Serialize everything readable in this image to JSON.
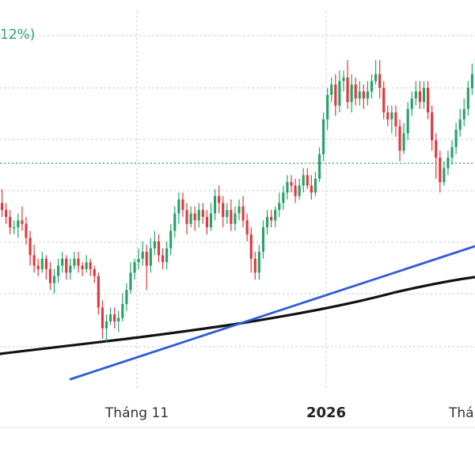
{
  "header": {
    "change_label": "12%)"
  },
  "colors": {
    "up": "#26a269",
    "down": "#e0383e",
    "trendline": "#2e5bd8",
    "moving_average": "#111111",
    "grid": "#d0d0d0",
    "reference_line": "#26a269"
  },
  "chart_data": {
    "type": "candlestick",
    "x_tick_labels": [
      {
        "label": "Tháng 11",
        "bold": false
      },
      {
        "label": "2026",
        "bold": true
      },
      {
        "label": "Tháng",
        "bold": false
      }
    ],
    "ylim": [
      0,
      100
    ],
    "grid": true,
    "reference_line": 60.4,
    "candles": [
      [
        49,
        47,
        53,
        45
      ],
      [
        47,
        45,
        49,
        43
      ],
      [
        45,
        42,
        47,
        40
      ],
      [
        42,
        42,
        44,
        40
      ],
      [
        42,
        44,
        46,
        39
      ],
      [
        44,
        43,
        48,
        41
      ],
      [
        43,
        39,
        45,
        37
      ],
      [
        39,
        34,
        41,
        31
      ],
      [
        34,
        31,
        37,
        29
      ],
      [
        31,
        30,
        33,
        28
      ],
      [
        30,
        33,
        35,
        29
      ],
      [
        33,
        30,
        34,
        27
      ],
      [
        30,
        26,
        32,
        24
      ],
      [
        26,
        28,
        30,
        23
      ],
      [
        28,
        31,
        33,
        26
      ],
      [
        31,
        33,
        35,
        29
      ],
      [
        33,
        29,
        34,
        27
      ],
      [
        29,
        31,
        33,
        27
      ],
      [
        31,
        33,
        35,
        30
      ],
      [
        33,
        31,
        35,
        29
      ],
      [
        31,
        30,
        32,
        28
      ],
      [
        30,
        32,
        34,
        29
      ],
      [
        32,
        30,
        33,
        28
      ],
      [
        30,
        28,
        31,
        26
      ],
      [
        28,
        19,
        29,
        17
      ],
      [
        19,
        13,
        21,
        10
      ],
      [
        13,
        15,
        17,
        9
      ],
      [
        15,
        17,
        19,
        14
      ],
      [
        17,
        15,
        19,
        13
      ],
      [
        15,
        16,
        18,
        12
      ],
      [
        16,
        20,
        23,
        15
      ],
      [
        20,
        24,
        26,
        18
      ],
      [
        24,
        29,
        32,
        23
      ],
      [
        29,
        32,
        33,
        27
      ],
      [
        32,
        33,
        36,
        30
      ],
      [
        33,
        35,
        38,
        31
      ],
      [
        35,
        31,
        37,
        24
      ],
      [
        31,
        36,
        39,
        29
      ],
      [
        36,
        38,
        41,
        34
      ],
      [
        38,
        34,
        40,
        32
      ],
      [
        34,
        32,
        36,
        30
      ],
      [
        32,
        36,
        38,
        30
      ],
      [
        36,
        41,
        43,
        34
      ],
      [
        41,
        46,
        48,
        39
      ],
      [
        46,
        50,
        52,
        43
      ],
      [
        50,
        47,
        52,
        45
      ],
      [
        47,
        43,
        49,
        40
      ],
      [
        43,
        46,
        48,
        42
      ],
      [
        46,
        44,
        48,
        41
      ],
      [
        44,
        47,
        49,
        42
      ],
      [
        47,
        45,
        49,
        43
      ],
      [
        45,
        42,
        47,
        40
      ],
      [
        42,
        46,
        49,
        41
      ],
      [
        46,
        51,
        53,
        44
      ],
      [
        51,
        49,
        54,
        46
      ],
      [
        49,
        45,
        51,
        42
      ],
      [
        45,
        47,
        49,
        43
      ],
      [
        47,
        43,
        50,
        41
      ],
      [
        43,
        46,
        48,
        41
      ],
      [
        46,
        48,
        50,
        44
      ],
      [
        48,
        44,
        51,
        42
      ],
      [
        44,
        40,
        46,
        38
      ],
      [
        40,
        33,
        42,
        29
      ],
      [
        33,
        29,
        35,
        27
      ],
      [
        29,
        35,
        37,
        27
      ],
      [
        35,
        42,
        44,
        33
      ],
      [
        42,
        45,
        47,
        40
      ],
      [
        45,
        44,
        47,
        42
      ],
      [
        44,
        47,
        48,
        42
      ],
      [
        47,
        49,
        52,
        45
      ],
      [
        49,
        52,
        54,
        47
      ],
      [
        52,
        55,
        57,
        50
      ],
      [
        55,
        54,
        57,
        52
      ],
      [
        54,
        51,
        56,
        49
      ],
      [
        51,
        54,
        56,
        50
      ],
      [
        54,
        57,
        59,
        52
      ],
      [
        57,
        54,
        59,
        53
      ],
      [
        54,
        52,
        57,
        50
      ],
      [
        52,
        56,
        58,
        51
      ],
      [
        56,
        63,
        65,
        55
      ],
      [
        63,
        73,
        75,
        61
      ],
      [
        73,
        80,
        82,
        70
      ],
      [
        80,
        83,
        85,
        78
      ],
      [
        83,
        77,
        86,
        74
      ],
      [
        77,
        84,
        87,
        75
      ],
      [
        84,
        85,
        87,
        81
      ],
      [
        85,
        78,
        90,
        76
      ],
      [
        78,
        83,
        86,
        75
      ],
      [
        83,
        79,
        85,
        77
      ],
      [
        79,
        81,
        84,
        77
      ],
      [
        81,
        79,
        83,
        76
      ],
      [
        79,
        81,
        84,
        77
      ],
      [
        81,
        84,
        86,
        79
      ],
      [
        84,
        86,
        90,
        83
      ],
      [
        86,
        82,
        90,
        79
      ],
      [
        82,
        75,
        84,
        73
      ],
      [
        75,
        73,
        77,
        71
      ],
      [
        73,
        75,
        77,
        69
      ],
      [
        75,
        71,
        77,
        68
      ],
      [
        71,
        64,
        73,
        61
      ],
      [
        64,
        69,
        72,
        63
      ],
      [
        69,
        76,
        78,
        67
      ],
      [
        76,
        79,
        81,
        74
      ],
      [
        79,
        81,
        84,
        77
      ],
      [
        81,
        78,
        84,
        76
      ],
      [
        78,
        82,
        84,
        76
      ],
      [
        82,
        75,
        84,
        73
      ],
      [
        75,
        67,
        77,
        64
      ],
      [
        67,
        62,
        69,
        56
      ],
      [
        62,
        55,
        64,
        52
      ],
      [
        55,
        59,
        61,
        54
      ],
      [
        59,
        62,
        64,
        57
      ],
      [
        62,
        65,
        67,
        60
      ],
      [
        65,
        70,
        72,
        63
      ],
      [
        70,
        73,
        76,
        68
      ],
      [
        73,
        76,
        79,
        71
      ],
      [
        76,
        82,
        84,
        74
      ],
      [
        82,
        86,
        89,
        80
      ],
      [
        86,
        91,
        94,
        85
      ]
    ]
  }
}
